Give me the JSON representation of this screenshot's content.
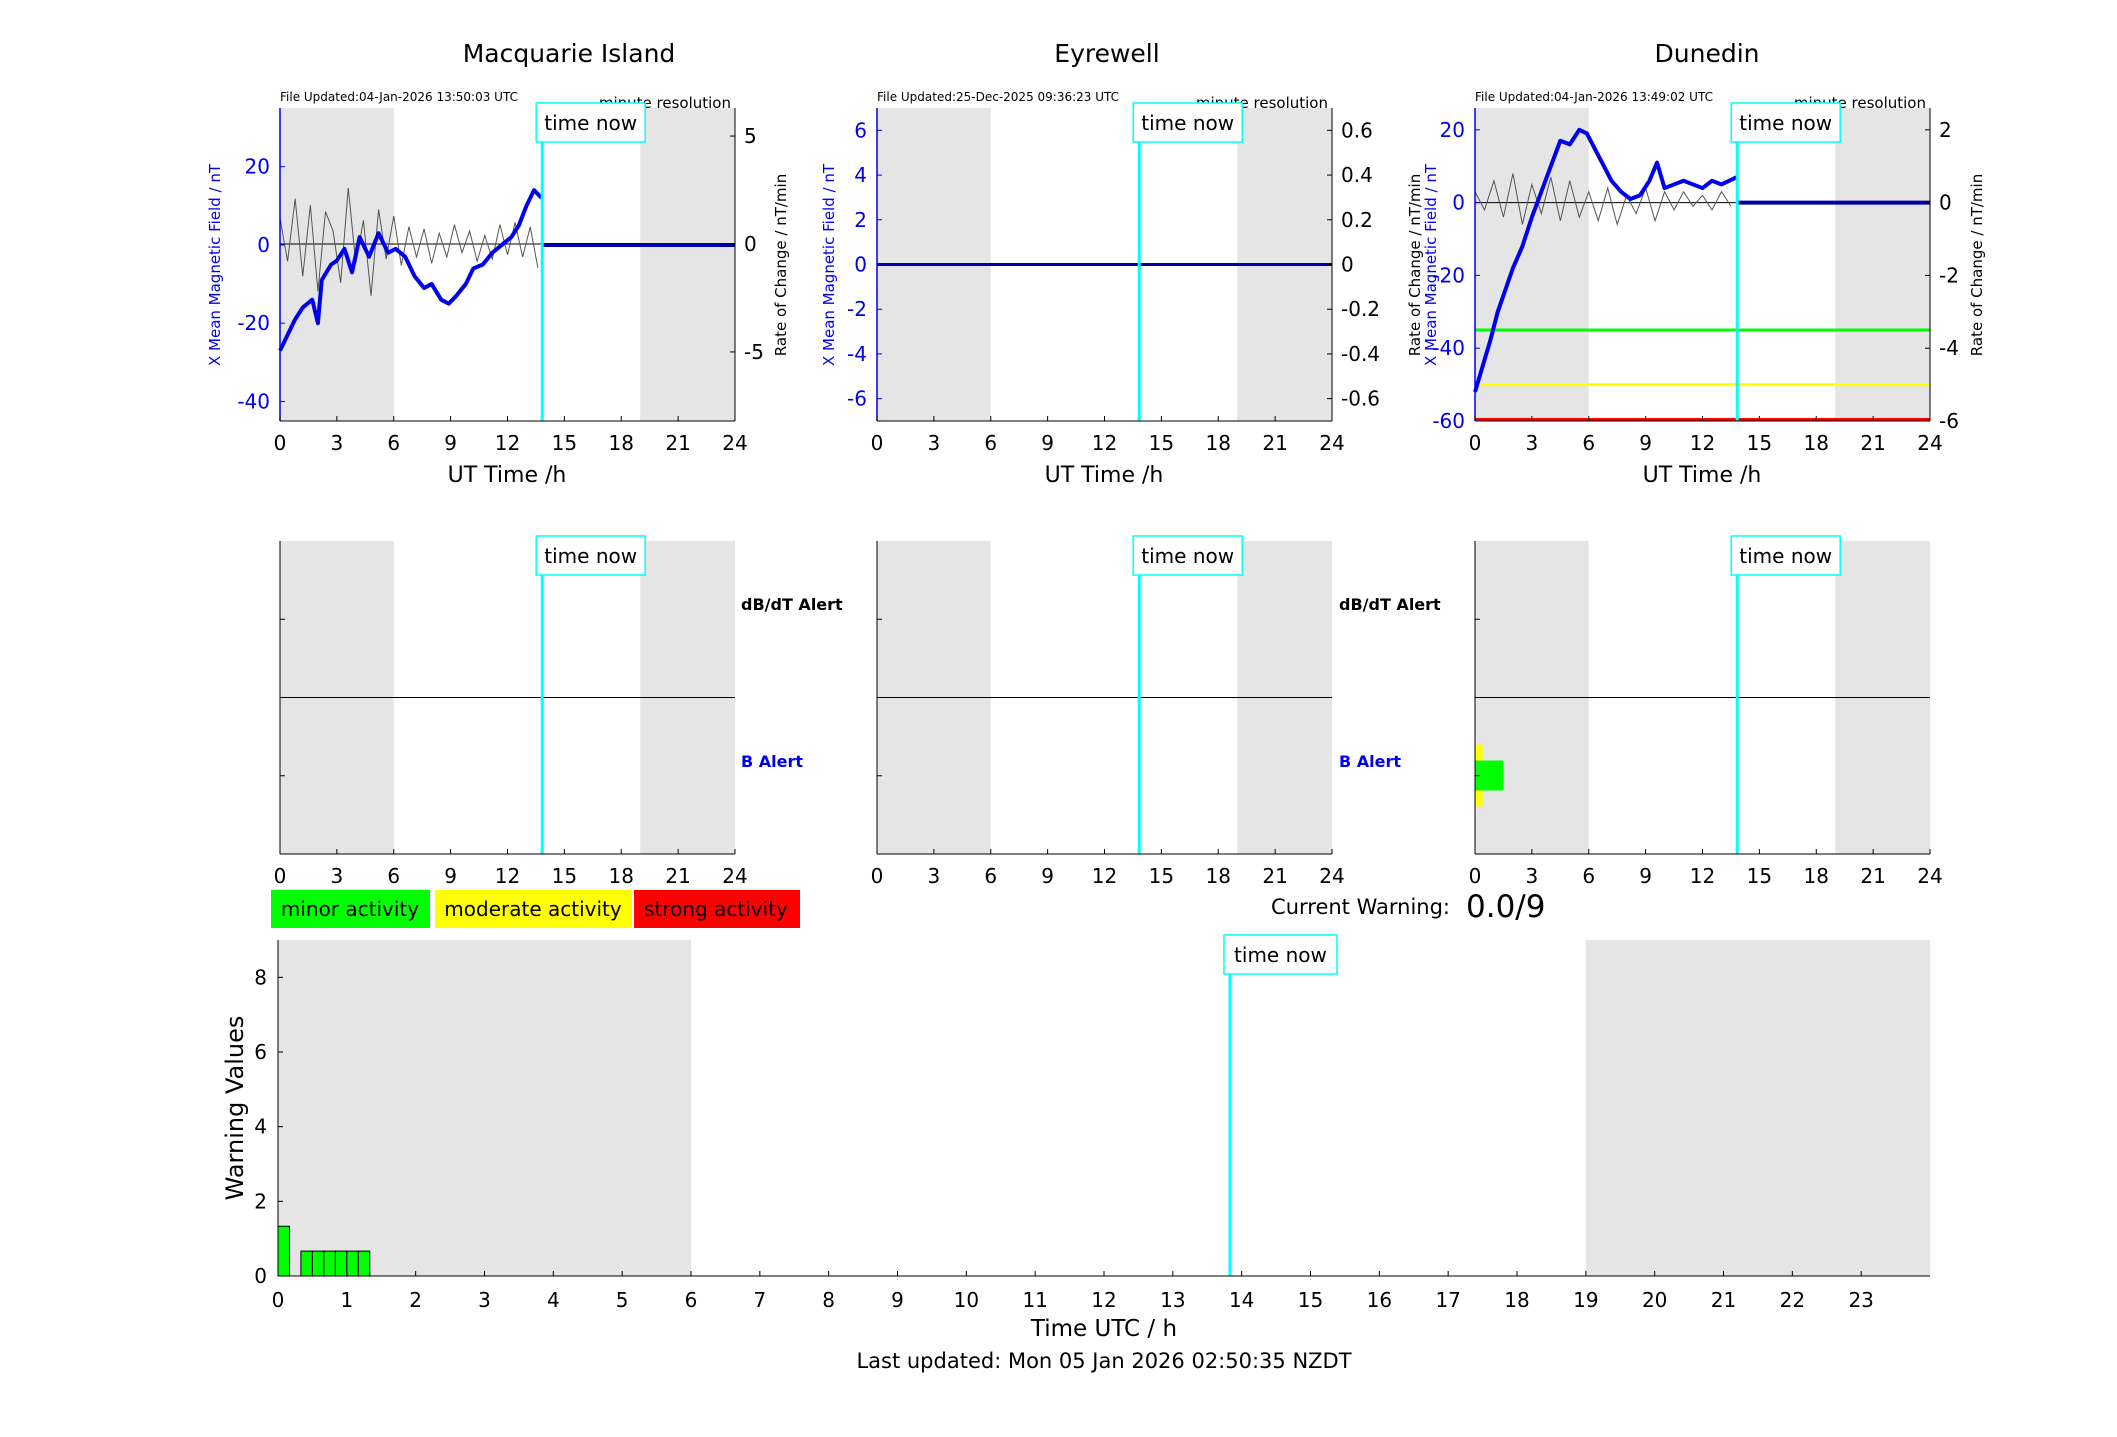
{
  "footer": {
    "last_updated": "Last updated: Mon 05 Jan 2026 02:50:35 NZDT"
  },
  "labels": {
    "time_now": "time now",
    "ut_xlabel": "UT Time /h",
    "mag_ylabel": "X Mean Magnetic Field / nT",
    "rate_ylabel": "Rate of Change / nT/min",
    "resolution": "minute resolution",
    "dbdt_alert": "dB/dT Alert",
    "b_alert": "B Alert"
  },
  "legend": {
    "minor": "minor activity",
    "moderate": "moderate activity",
    "strong": "strong activity"
  },
  "current_warning": {
    "label": "Current Warning:",
    "value": "0.0/9"
  },
  "colors": {
    "mag_line": "#0000ee",
    "rate_line": "#555555",
    "now_line": "#00ffff",
    "shade": "#e5e5e5",
    "minor": "#00ff00",
    "moderate": "#ffff00",
    "strong": "#ff0000"
  },
  "chart_data": [
    {
      "type": "line",
      "title": "Macquarie Island",
      "file_updated": "File Updated:04-Jan-2026 13:50:03 UTC",
      "xlim": [
        0,
        24
      ],
      "xticks": [
        0,
        3,
        6,
        9,
        12,
        15,
        18,
        21,
        24
      ],
      "ylim": [
        -45,
        35
      ],
      "yticks": [
        -40,
        -20,
        0,
        20
      ],
      "y2lim": [
        -8.2,
        6.3
      ],
      "y2ticks": [
        -5,
        0,
        5
      ],
      "y2ticklabels": [
        "-5",
        "0",
        "5"
      ],
      "night_shading": [
        [
          0,
          6
        ],
        [
          19,
          24
        ]
      ],
      "time_now": 13.83,
      "thresholds": [],
      "mag_series": {
        "x": [
          0,
          0.3,
          0.8,
          1.2,
          1.7,
          2.0,
          2.2,
          2.7,
          3.0,
          3.4,
          3.8,
          4.2,
          4.7,
          5.2,
          5.7,
          6.1,
          6.6,
          7.1,
          7.6,
          8.0,
          8.5,
          8.9,
          9.3,
          9.8,
          10.2,
          10.7,
          11.2,
          11.7,
          12.2,
          12.6,
          13.0,
          13.4,
          13.8
        ],
        "y": [
          -27,
          -24,
          -19,
          -16,
          -14,
          -20,
          -9,
          -5,
          -4,
          -1,
          -7,
          2,
          -3,
          3,
          -2,
          -1,
          -3,
          -8,
          -11,
          -10,
          -14,
          -15,
          -13,
          -10,
          -6,
          -5,
          -2,
          0,
          2,
          5,
          10,
          14,
          12
        ]
      },
      "rate_series": {
        "x": [
          0,
          0.4,
          0.8,
          1.2,
          1.6,
          2.0,
          2.4,
          2.8,
          3.2,
          3.6,
          4.0,
          4.4,
          4.8,
          5.2,
          5.6,
          6.0,
          6.4,
          6.8,
          7.2,
          7.6,
          8.0,
          8.4,
          8.8,
          9.2,
          9.6,
          10.0,
          10.4,
          10.8,
          11.2,
          11.6,
          12.0,
          12.4,
          12.8,
          13.2,
          13.6
        ],
        "y": [
          1.2,
          -0.8,
          2.1,
          -1.5,
          1.8,
          -2.2,
          1.5,
          0.6,
          -1.8,
          2.6,
          -0.9,
          1.1,
          -2.4,
          1.6,
          -0.7,
          1.3,
          -1.0,
          0.8,
          -0.6,
          0.7,
          -0.9,
          0.5,
          -0.6,
          0.9,
          -0.4,
          0.6,
          -0.8,
          0.4,
          -0.7,
          0.9,
          -0.5,
          1.0,
          -0.6,
          0.8,
          -1.1
        ]
      },
      "alert_bars": []
    },
    {
      "type": "line",
      "title": "Eyrewell",
      "file_updated": "File Updated:25-Dec-2025 09:36:23 UTC",
      "xlim": [
        0,
        24
      ],
      "xticks": [
        0,
        3,
        6,
        9,
        12,
        15,
        18,
        21,
        24
      ],
      "ylim": [
        -7,
        7
      ],
      "yticks": [
        -6,
        -4,
        -2,
        0,
        2,
        4,
        6
      ],
      "y2lim": [
        -0.7,
        0.7
      ],
      "y2ticks": [
        -0.6,
        -0.4,
        -0.2,
        0,
        0.2,
        0.4,
        0.6
      ],
      "y2ticklabels": [
        "-0.6",
        "-0.4",
        "-0.2",
        "0",
        "0.2",
        "0.4",
        "0.6"
      ],
      "night_shading": [
        [
          0,
          6
        ],
        [
          19,
          24
        ]
      ],
      "time_now": 13.83,
      "thresholds": [],
      "mag_series": {
        "x": [],
        "y": []
      },
      "rate_series": {
        "x": [],
        "y": []
      },
      "alert_bars": []
    },
    {
      "type": "line",
      "title": "Dunedin",
      "file_updated": "File Updated:04-Jan-2026 13:49:02 UTC",
      "xlim": [
        0,
        24
      ],
      "xticks": [
        0,
        3,
        6,
        9,
        12,
        15,
        18,
        21,
        24
      ],
      "ylim": [
        -60,
        26
      ],
      "yticks": [
        -60,
        -40,
        -20,
        0,
        20
      ],
      "y2lim": [
        -6,
        2.6
      ],
      "y2ticks": [
        -6,
        -4,
        -2,
        0,
        2
      ],
      "y2ticklabels": [
        "-6",
        "-4",
        "-2",
        "0",
        "2"
      ],
      "night_shading": [
        [
          0,
          6
        ],
        [
          19,
          24
        ]
      ],
      "time_now": 13.83,
      "thresholds": [
        {
          "value": -35,
          "color": "#00ff00"
        },
        {
          "value": -50,
          "color": "#ffff00"
        },
        {
          "value": -60,
          "color": "#ff0000"
        }
      ],
      "mag_series": {
        "x": [
          0,
          0.4,
          0.8,
          1.2,
          1.6,
          2.0,
          2.5,
          3.0,
          3.5,
          4.0,
          4.5,
          5.0,
          5.5,
          5.9,
          6.3,
          6.8,
          7.2,
          7.7,
          8.2,
          8.7,
          9.2,
          9.6,
          10.0,
          10.5,
          11.0,
          11.5,
          12.0,
          12.5,
          13.0,
          13.4,
          13.8
        ],
        "y": [
          -52,
          -45,
          -38,
          -30,
          -24,
          -18,
          -12,
          -4,
          3,
          10,
          17,
          16,
          20,
          19,
          15,
          10,
          6,
          3,
          1,
          2,
          6,
          11,
          4,
          5,
          6,
          5,
          4,
          6,
          5,
          6,
          7
        ]
      },
      "rate_series": {
        "x": [
          0,
          0.5,
          1.0,
          1.5,
          2.0,
          2.5,
          3.0,
          3.5,
          4.0,
          4.5,
          5.0,
          5.5,
          6.0,
          6.5,
          7.0,
          7.5,
          8.0,
          8.5,
          9.0,
          9.5,
          10.0,
          10.5,
          11.0,
          11.5,
          12.0,
          12.5,
          13.0,
          13.5
        ],
        "y": [
          0.3,
          -0.2,
          0.6,
          -0.4,
          0.8,
          -0.6,
          0.5,
          -0.3,
          0.7,
          -0.5,
          0.6,
          -0.4,
          0.3,
          -0.5,
          0.4,
          -0.6,
          0.2,
          -0.3,
          0.4,
          -0.5,
          0.3,
          -0.2,
          0.3,
          -0.1,
          0.2,
          -0.2,
          0.3,
          -0.1
        ]
      },
      "alert_bars": [
        {
          "x0": 0,
          "x1": 0.4,
          "level": "moderate"
        },
        {
          "x0": 0,
          "x1": 1.5,
          "level": "minor"
        }
      ]
    },
    {
      "type": "bar",
      "title": "",
      "xlabel": "Time UTC / h",
      "ylabel": "Warning Values",
      "xlim": [
        0,
        24
      ],
      "xticks": [
        0,
        1,
        2,
        3,
        4,
        5,
        6,
        7,
        8,
        9,
        10,
        11,
        12,
        13,
        14,
        15,
        16,
        17,
        18,
        19,
        20,
        21,
        22,
        23
      ],
      "ylim": [
        0,
        9
      ],
      "yticks": [
        0,
        2,
        4,
        6,
        8
      ],
      "night_shading": [
        [
          0,
          6
        ],
        [
          19,
          24
        ]
      ],
      "time_now": 13.83,
      "bars": {
        "x": [
          0,
          0.333,
          0.5,
          0.667,
          0.833,
          1.0,
          1.167
        ],
        "width": 0.1667,
        "values": [
          1.333,
          0.667,
          0.667,
          0.667,
          0.667,
          0.667,
          0.667
        ]
      }
    }
  ]
}
